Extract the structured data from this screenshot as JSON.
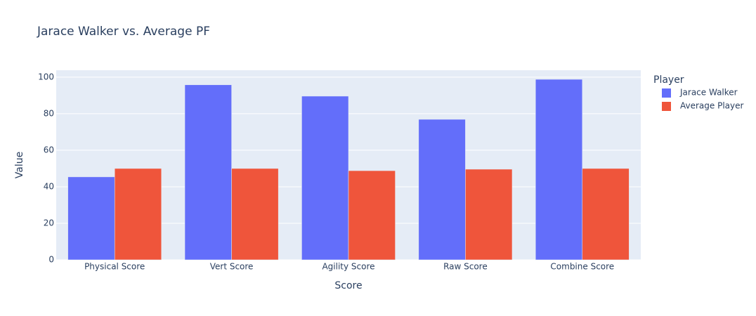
{
  "chart_data": {
    "type": "bar",
    "title": "Jarace Walker vs. Average PF",
    "x_label": "Score",
    "y_label": "Value",
    "categories": [
      "Physical Score",
      "Vert Score",
      "Agility Score",
      "Raw Score",
      "Combine Score"
    ],
    "legend_title": "Player",
    "series": [
      {
        "name": "Jarace Walker",
        "color": "#636efa",
        "values": [
          45.4,
          95.8,
          89.6,
          76.9,
          98.8
        ]
      },
      {
        "name": "Average Player",
        "color": "#EF553B",
        "values": [
          50,
          50,
          48.8,
          49.6,
          50
        ]
      }
    ],
    "ylim": [
      0,
      103.8
    ],
    "yticks": [
      0,
      20,
      40,
      60,
      80,
      100
    ],
    "grid": true,
    "legend": "right"
  }
}
